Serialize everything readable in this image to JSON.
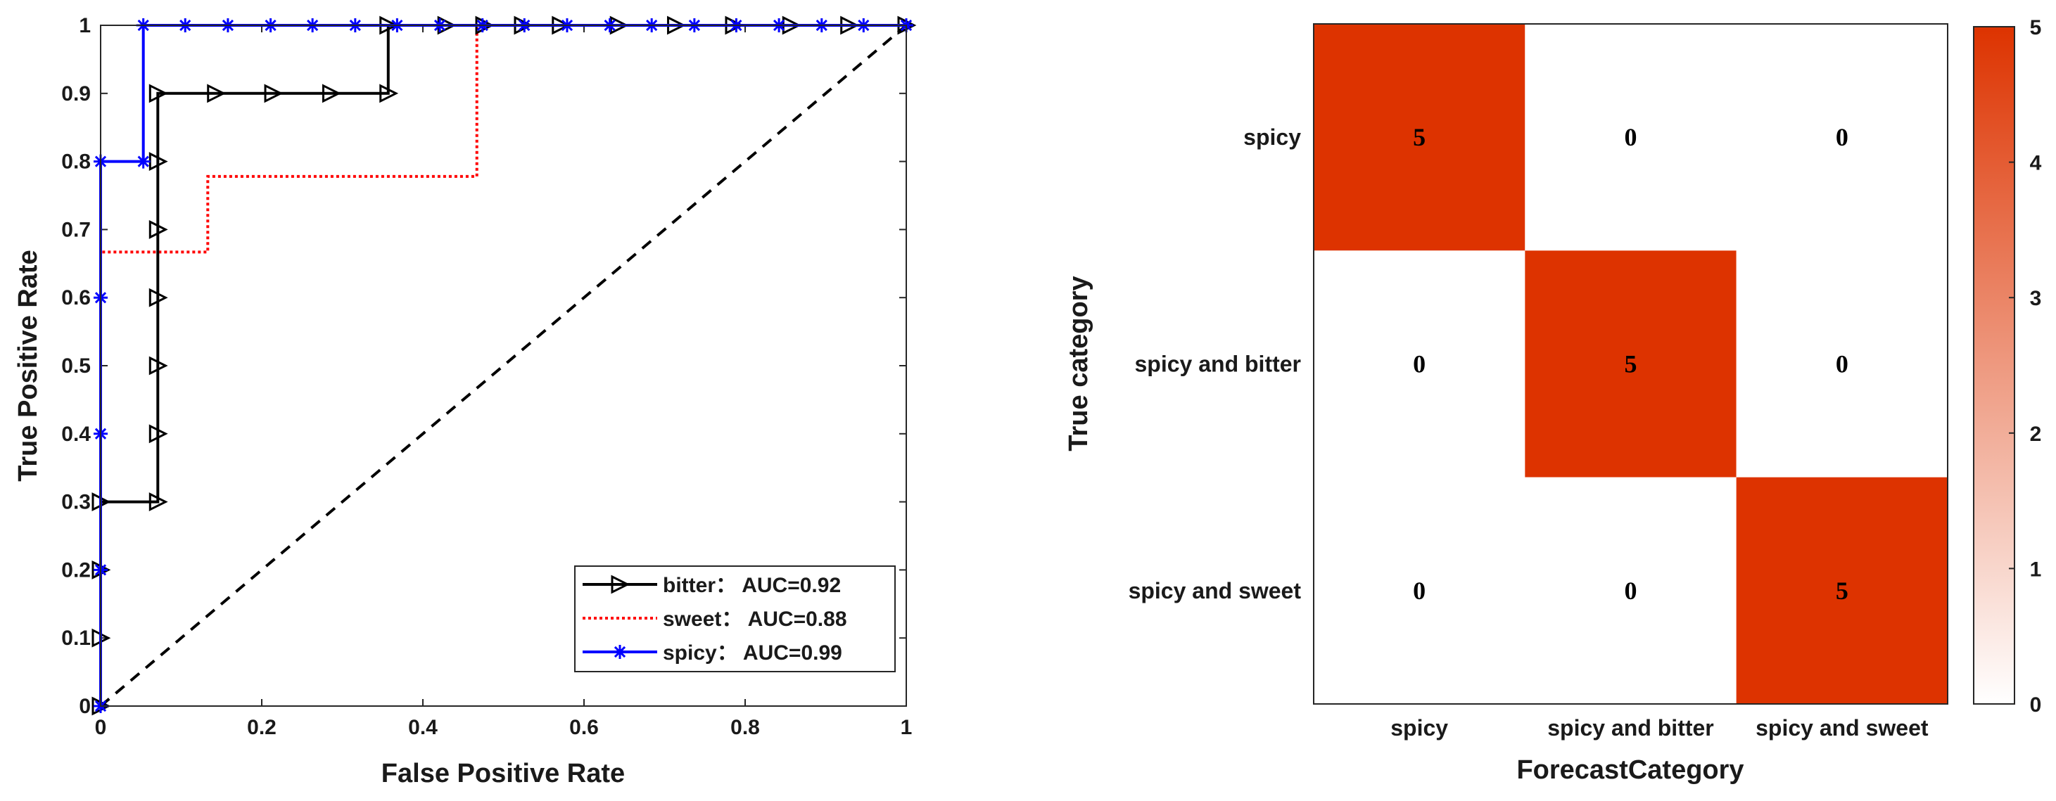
{
  "chart_data": [
    {
      "type": "line",
      "xlabel": "False Positive Rate",
      "ylabel": "True Positive Rate",
      "xlim": [
        0,
        1
      ],
      "ylim": [
        0,
        1
      ],
      "xticks": [
        0,
        0.2,
        0.4,
        0.6,
        0.8,
        1
      ],
      "xtick_labels": [
        "0",
        "0.2",
        "0.4",
        "0.6",
        "0.8",
        "1"
      ],
      "yticks": [
        0,
        0.1,
        0.2,
        0.3,
        0.4,
        0.5,
        0.6,
        0.7,
        0.8,
        0.9,
        1
      ],
      "ytick_labels": [
        "0",
        "0.1",
        "0.2",
        "0.3",
        "0.4",
        "0.5",
        "0.6",
        "0.7",
        "0.8",
        "0.9",
        "1"
      ],
      "legend_position": "bottom-right",
      "series": [
        {
          "name": "bitter",
          "legend_label": "bitter：  AUC=0.92",
          "color": "#000000",
          "style": "solid",
          "marker": "triangle-right",
          "x": [
            0,
            0,
            0,
            0,
            0.071,
            0.071,
            0.071,
            0.071,
            0.071,
            0.071,
            0.071,
            0.143,
            0.214,
            0.286,
            0.357,
            0.357,
            0.429,
            0.476,
            0.524,
            0.571,
            0.643,
            0.714,
            0.786,
            0.857,
            0.929,
            1
          ],
          "y": [
            0,
            0.1,
            0.2,
            0.3,
            0.3,
            0.4,
            0.5,
            0.6,
            0.7,
            0.8,
            0.9,
            0.9,
            0.9,
            0.9,
            0.9,
            1,
            1,
            1,
            1,
            1,
            1,
            1,
            1,
            1,
            1,
            1
          ]
        },
        {
          "name": "sweet",
          "legend_label": "sweet：  AUC=0.88",
          "color": "#ff0000",
          "style": "dotted",
          "marker": "none",
          "x": [
            0,
            0,
            0.133,
            0.133,
            0.467,
            0.467,
            1
          ],
          "y": [
            0,
            0.667,
            0.667,
            0.778,
            0.778,
            1,
            1
          ]
        },
        {
          "name": "spicy",
          "legend_label": "spicy：  AUC=0.99",
          "color": "#0000ff",
          "style": "solid",
          "marker": "asterisk",
          "x": [
            0,
            0,
            0,
            0,
            0,
            0.053,
            0.053,
            0.105,
            0.158,
            0.211,
            0.263,
            0.316,
            0.368,
            0.421,
            0.474,
            0.526,
            0.579,
            0.632,
            0.684,
            0.737,
            0.789,
            0.842,
            0.895,
            0.947,
            1
          ],
          "y": [
            0,
            0.2,
            0.4,
            0.6,
            0.8,
            0.8,
            1,
            1,
            1,
            1,
            1,
            1,
            1,
            1,
            1,
            1,
            1,
            1,
            1,
            1,
            1,
            1,
            1,
            1,
            1
          ]
        },
        {
          "name": "chance",
          "color": "#000000",
          "style": "dashed",
          "marker": "none",
          "x": [
            0,
            1
          ],
          "y": [
            0,
            1
          ]
        }
      ]
    },
    {
      "type": "heatmap",
      "xlabel": "ForecastCategory",
      "ylabel": "True category",
      "x_categories": [
        "spicy",
        "spicy and bitter",
        "spicy and sweet"
      ],
      "y_categories": [
        "spicy",
        "spicy and bitter",
        "spicy and sweet"
      ],
      "values": [
        [
          5,
          0,
          0
        ],
        [
          0,
          5,
          0
        ],
        [
          0,
          0,
          5
        ]
      ],
      "colorbar": {
        "min": 0,
        "max": 5,
        "ticks": [
          0,
          1,
          2,
          3,
          4,
          5
        ],
        "tick_labels": [
          "0",
          "1",
          "2",
          "3",
          "4",
          "5"
        ],
        "color_low": "#ffffff",
        "color_high": "#dd3300"
      }
    }
  ]
}
